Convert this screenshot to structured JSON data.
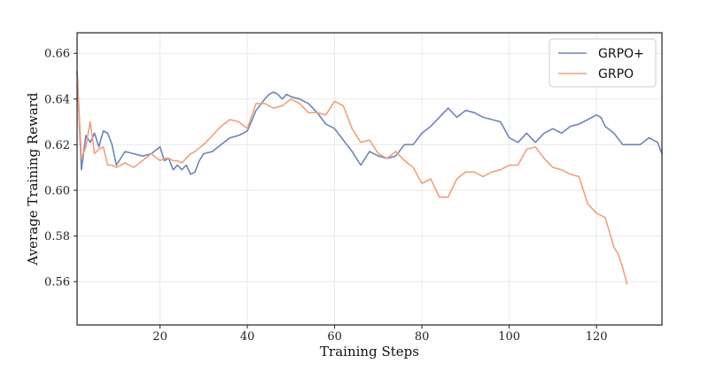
{
  "chart_data": {
    "type": "line",
    "title": "",
    "xlabel": "Training Steps",
    "ylabel": "Average Training Reward",
    "xlim": [
      1,
      135
    ],
    "ylim": [
      0.541,
      0.669
    ],
    "xticks": [
      20,
      40,
      60,
      80,
      100,
      120
    ],
    "yticks": [
      0.56,
      0.58,
      0.6,
      0.62,
      0.64,
      0.66
    ],
    "xtick_labels": [
      "20",
      "40",
      "60",
      "80",
      "100",
      "120"
    ],
    "ytick_labels": [
      "0.56",
      "0.58",
      "0.60",
      "0.62",
      "0.64",
      "0.66"
    ],
    "grid": true,
    "legend": "top-right",
    "series": [
      {
        "name": "GRPO+",
        "color": "#6a85b8",
        "x": [
          1,
          2,
          3,
          4,
          5,
          6,
          7,
          8,
          9,
          10,
          12,
          14,
          16,
          18,
          20,
          21,
          22,
          23,
          24,
          25,
          26,
          27,
          28,
          29,
          30,
          32,
          34,
          36,
          38,
          40,
          42,
          44,
          45,
          46,
          47,
          48,
          49,
          50,
          52,
          54,
          56,
          58,
          60,
          62,
          64,
          66,
          68,
          70,
          72,
          74,
          76,
          78,
          80,
          82,
          84,
          86,
          88,
          90,
          92,
          94,
          96,
          98,
          100,
          102,
          104,
          106,
          108,
          110,
          112,
          114,
          116,
          118,
          120,
          121,
          122,
          124,
          126,
          128,
          130,
          132,
          134,
          135
        ],
        "y": [
          0.652,
          0.609,
          0.624,
          0.621,
          0.625,
          0.619,
          0.626,
          0.625,
          0.62,
          0.611,
          0.617,
          0.616,
          0.615,
          0.616,
          0.619,
          0.613,
          0.614,
          0.609,
          0.611,
          0.609,
          0.611,
          0.607,
          0.608,
          0.613,
          0.616,
          0.617,
          0.62,
          0.623,
          0.624,
          0.626,
          0.635,
          0.64,
          0.642,
          0.643,
          0.642,
          0.64,
          0.642,
          0.641,
          0.64,
          0.638,
          0.634,
          0.629,
          0.627,
          0.622,
          0.617,
          0.611,
          0.617,
          0.615,
          0.614,
          0.615,
          0.62,
          0.62,
          0.625,
          0.628,
          0.632,
          0.636,
          0.632,
          0.635,
          0.634,
          0.632,
          0.631,
          0.63,
          0.623,
          0.621,
          0.625,
          0.621,
          0.625,
          0.627,
          0.625,
          0.628,
          0.629,
          0.631,
          0.633,
          0.632,
          0.628,
          0.625,
          0.62,
          0.62,
          0.62,
          0.623,
          0.621,
          0.616
        ]
      },
      {
        "name": "GRPO",
        "color": "#f0a07a",
        "x": [
          1,
          2,
          3,
          4,
          5,
          6,
          7,
          8,
          9,
          10,
          12,
          14,
          16,
          18,
          20,
          21,
          22,
          23,
          24,
          25,
          26,
          27,
          28,
          30,
          32,
          34,
          36,
          38,
          40,
          42,
          44,
          46,
          48,
          50,
          52,
          54,
          56,
          58,
          60,
          62,
          64,
          66,
          68,
          70,
          72,
          74,
          76,
          78,
          80,
          82,
          84,
          86,
          88,
          90,
          92,
          94,
          96,
          98,
          100,
          102,
          104,
          106,
          108,
          110,
          112,
          114,
          116,
          118,
          120,
          122,
          124,
          125,
          126,
          127
        ],
        "y": [
          0.652,
          0.614,
          0.619,
          0.63,
          0.616,
          0.618,
          0.619,
          0.611,
          0.611,
          0.61,
          0.612,
          0.61,
          0.613,
          0.616,
          0.613,
          0.614,
          0.614,
          0.613,
          0.613,
          0.612,
          0.614,
          0.616,
          0.617,
          0.62,
          0.624,
          0.628,
          0.631,
          0.63,
          0.627,
          0.638,
          0.638,
          0.636,
          0.637,
          0.64,
          0.638,
          0.634,
          0.634,
          0.633,
          0.639,
          0.637,
          0.627,
          0.621,
          0.622,
          0.616,
          0.614,
          0.617,
          0.613,
          0.61,
          0.603,
          0.605,
          0.597,
          0.597,
          0.605,
          0.608,
          0.608,
          0.606,
          0.608,
          0.609,
          0.611,
          0.611,
          0.618,
          0.619,
          0.614,
          0.61,
          0.609,
          0.607,
          0.606,
          0.594,
          0.59,
          0.588,
          0.575,
          0.572,
          0.566,
          0.559
        ]
      }
    ]
  }
}
